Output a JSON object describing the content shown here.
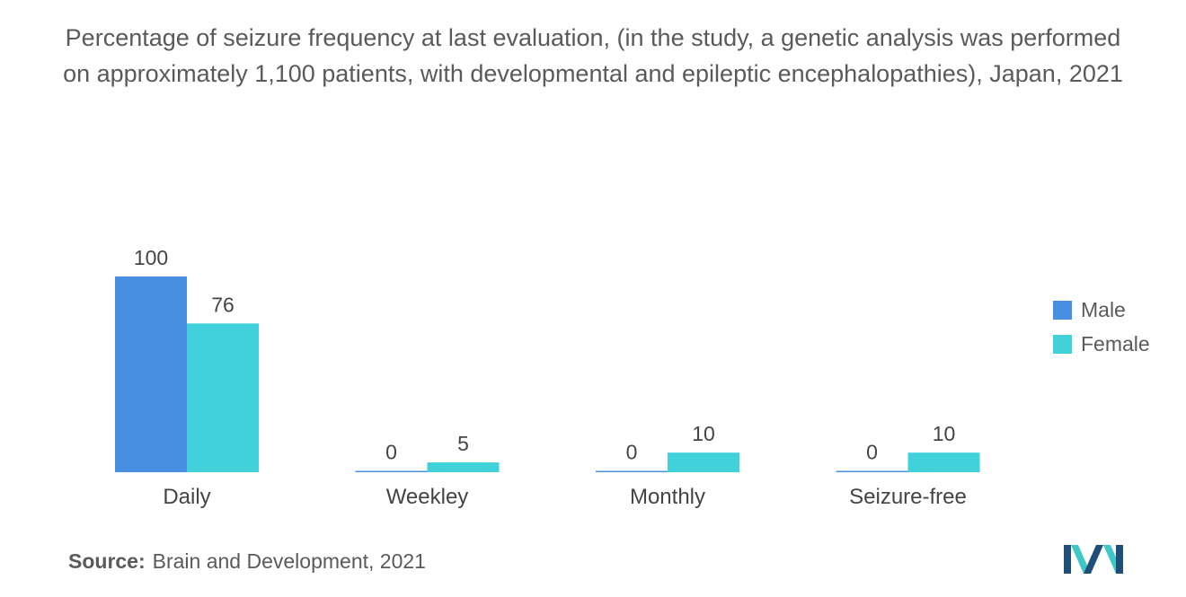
{
  "chart_data": {
    "type": "bar",
    "title": "Percentage of seizure frequency at last evaluation, (in the study, a genetic analysis was performed on approximately 1,100 patients, with developmental and epileptic encephalopathies), Japan, 2021",
    "categories": [
      "Daily",
      "Weekley",
      "Monthly",
      "Seizure-free"
    ],
    "series": [
      {
        "name": "Male",
        "values": [
          100,
          0,
          0,
          0
        ],
        "color": "#4a90e2"
      },
      {
        "name": "Female",
        "values": [
          76,
          5,
          10,
          10
        ],
        "color": "#40d1da"
      }
    ],
    "ylim": [
      0,
      100
    ],
    "grid": false,
    "legend_position": "right"
  },
  "source": {
    "label": "Source:",
    "text": "Brain and Development, 2021"
  },
  "colors": {
    "logo_dark": "#1f4e79",
    "logo_light": "#3ec7c7"
  }
}
